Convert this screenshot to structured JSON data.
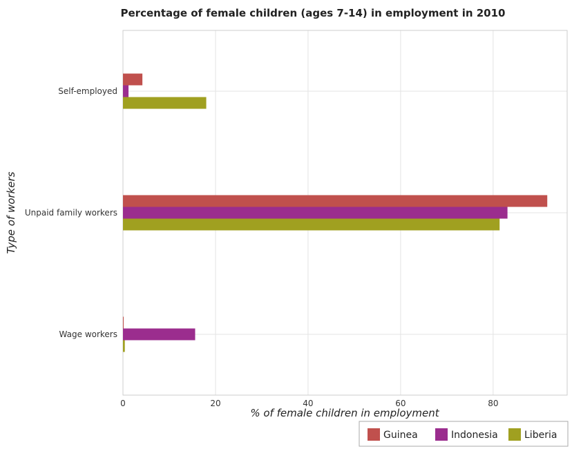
{
  "chart_data": {
    "type": "bar",
    "orientation": "horizontal",
    "title": "Percentage of female children (ages 7-14) in employment in 2010",
    "xlabel": "% of female children in employment",
    "ylabel": "Type of workers",
    "categories": [
      "Self-employed",
      "Unpaid family workers",
      "Wage workers"
    ],
    "series": [
      {
        "name": "Guinea",
        "color": "#c0504d",
        "values": [
          4.2,
          91.7,
          0.1
        ]
      },
      {
        "name": "Indonesia",
        "color": "#9b2d8e",
        "values": [
          1.2,
          83.1,
          15.6
        ]
      },
      {
        "name": "Liberia",
        "color": "#a0a020",
        "values": [
          18.0,
          81.4,
          0.4
        ]
      }
    ],
    "x_ticks": [
      "0",
      "20",
      "40",
      "60",
      "80"
    ],
    "xlim": [
      0,
      96
    ],
    "grid": true,
    "legend_position": "bottom-right"
  }
}
